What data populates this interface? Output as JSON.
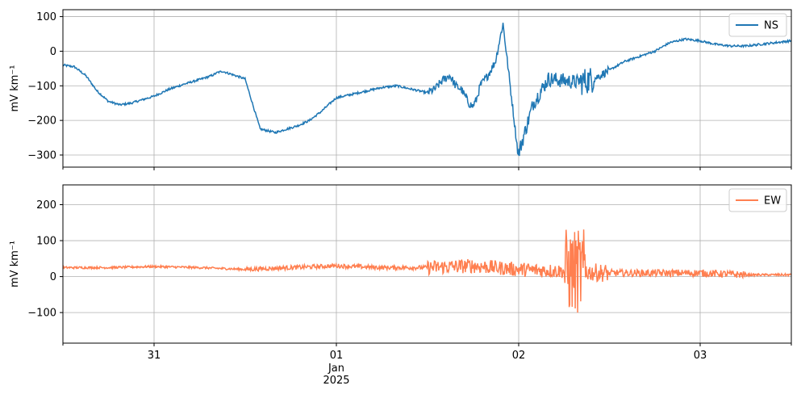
{
  "chart_data": [
    {
      "type": "line",
      "panel": "top",
      "title": "",
      "xlabel": "",
      "ylabel": "mV km⁻¹",
      "ylim": [
        -335,
        120
      ],
      "yticks": [
        -300,
        -200,
        -100,
        0,
        100
      ],
      "xlim": [
        "2024-12-30 12:00",
        "2025-01-03 12:00"
      ],
      "grid": true,
      "legend_position": "top-right",
      "series": [
        {
          "name": "NS",
          "color": "#1f77b4",
          "x": [
            "2024-12-30 12:00",
            "2024-12-30 13:30",
            "2024-12-30 15:00",
            "2024-12-30 16:30",
            "2024-12-30 18:00",
            "2024-12-30 19:30",
            "2024-12-30 21:00",
            "2024-12-30 22:30",
            "2024-12-31 00:00",
            "2024-12-31 02:00",
            "2024-12-31 04:00",
            "2024-12-31 06:00",
            "2024-12-31 07:00",
            "2024-12-31 07:40",
            "2024-12-31 08:20",
            "2024-12-31 09:00",
            "2024-12-31 10:00",
            "2024-12-31 12:00",
            "2024-12-31 14:00",
            "2024-12-31 16:00",
            "2024-12-31 17:30",
            "2024-12-31 19:00",
            "2024-12-31 20:30",
            "2024-12-31 22:00",
            "2025-01-01 00:00",
            "2025-01-01 02:00",
            "2025-01-01 04:00",
            "2025-01-01 06:00",
            "2025-01-01 08:00",
            "2025-01-01 10:00",
            "2025-01-01 12:00",
            "2025-01-01 13:00",
            "2025-01-01 14:00",
            "2025-01-01 15:00",
            "2025-01-01 15:45",
            "2025-01-01 16:30",
            "2025-01-01 17:00",
            "2025-01-01 17:30",
            "2025-01-01 18:00",
            "2025-01-01 18:30",
            "2025-01-01 19:00",
            "2025-01-01 20:00",
            "2025-01-01 21:00",
            "2025-01-01 22:00",
            "2025-01-02 00:00",
            "2025-01-02 02:00",
            "2025-01-02 04:00",
            "2025-01-02 06:00",
            "2025-01-02 08:00",
            "2025-01-02 10:00",
            "2025-01-02 12:00",
            "2025-01-02 14:00",
            "2025-01-02 16:00",
            "2025-01-02 18:00",
            "2025-01-02 20:00",
            "2025-01-02 22:00",
            "2025-01-03 00:00",
            "2025-01-03 02:00",
            "2025-01-03 04:00",
            "2025-01-03 06:00",
            "2025-01-03 08:00",
            "2025-01-03 10:00",
            "2025-01-03 12:00"
          ],
          "values": [
            -40,
            -45,
            -70,
            -115,
            -145,
            -155,
            -150,
            -140,
            -130,
            -110,
            -95,
            -82,
            -75,
            -70,
            -62,
            -58,
            -65,
            -80,
            -225,
            -235,
            -225,
            -215,
            -200,
            -175,
            -135,
            -125,
            -115,
            -105,
            -100,
            -110,
            -120,
            -110,
            -85,
            -70,
            -100,
            -110,
            -130,
            -150,
            -160,
            -140,
            -100,
            -70,
            -30,
            80,
            -300,
            -150,
            -80,
            -85,
            -90,
            -80,
            -55,
            -30,
            -15,
            0,
            25,
            35,
            30,
            20,
            15,
            15,
            20,
            25,
            30
          ]
        }
      ]
    },
    {
      "type": "line",
      "panel": "bottom",
      "title": "",
      "xlabel": "",
      "ylabel": "mV km⁻¹",
      "ylim": [
        -185,
        255
      ],
      "yticks": [
        -100,
        0,
        100,
        200
      ],
      "xlim": [
        "2024-12-30 12:00",
        "2025-01-03 12:00"
      ],
      "xticks": [
        "31",
        "01",
        "02",
        "03"
      ],
      "xtick_sublabels": [
        "Jan",
        "2025"
      ],
      "grid": true,
      "legend_position": "top-right",
      "series": [
        {
          "name": "EW",
          "color": "#ff7f50",
          "x": [
            "2024-12-30 12:00",
            "2024-12-30 18:00",
            "2024-12-31 00:00",
            "2024-12-31 06:00",
            "2024-12-31 12:00",
            "2024-12-31 18:00",
            "2025-01-01 00:00",
            "2025-01-01 06:00",
            "2025-01-01 12:00",
            "2025-01-01 18:00",
            "2025-01-02 00:00",
            "2025-01-02 06:00",
            "2025-01-02 12:00",
            "2025-01-02 18:00",
            "2025-01-03 00:00",
            "2025-01-03 06:00",
            "2025-01-03 12:00"
          ],
          "values": [
            25,
            25,
            28,
            25,
            20,
            25,
            30,
            25,
            25,
            30,
            20,
            15,
            10,
            10,
            10,
            5,
            5
          ]
        }
      ]
    }
  ]
}
